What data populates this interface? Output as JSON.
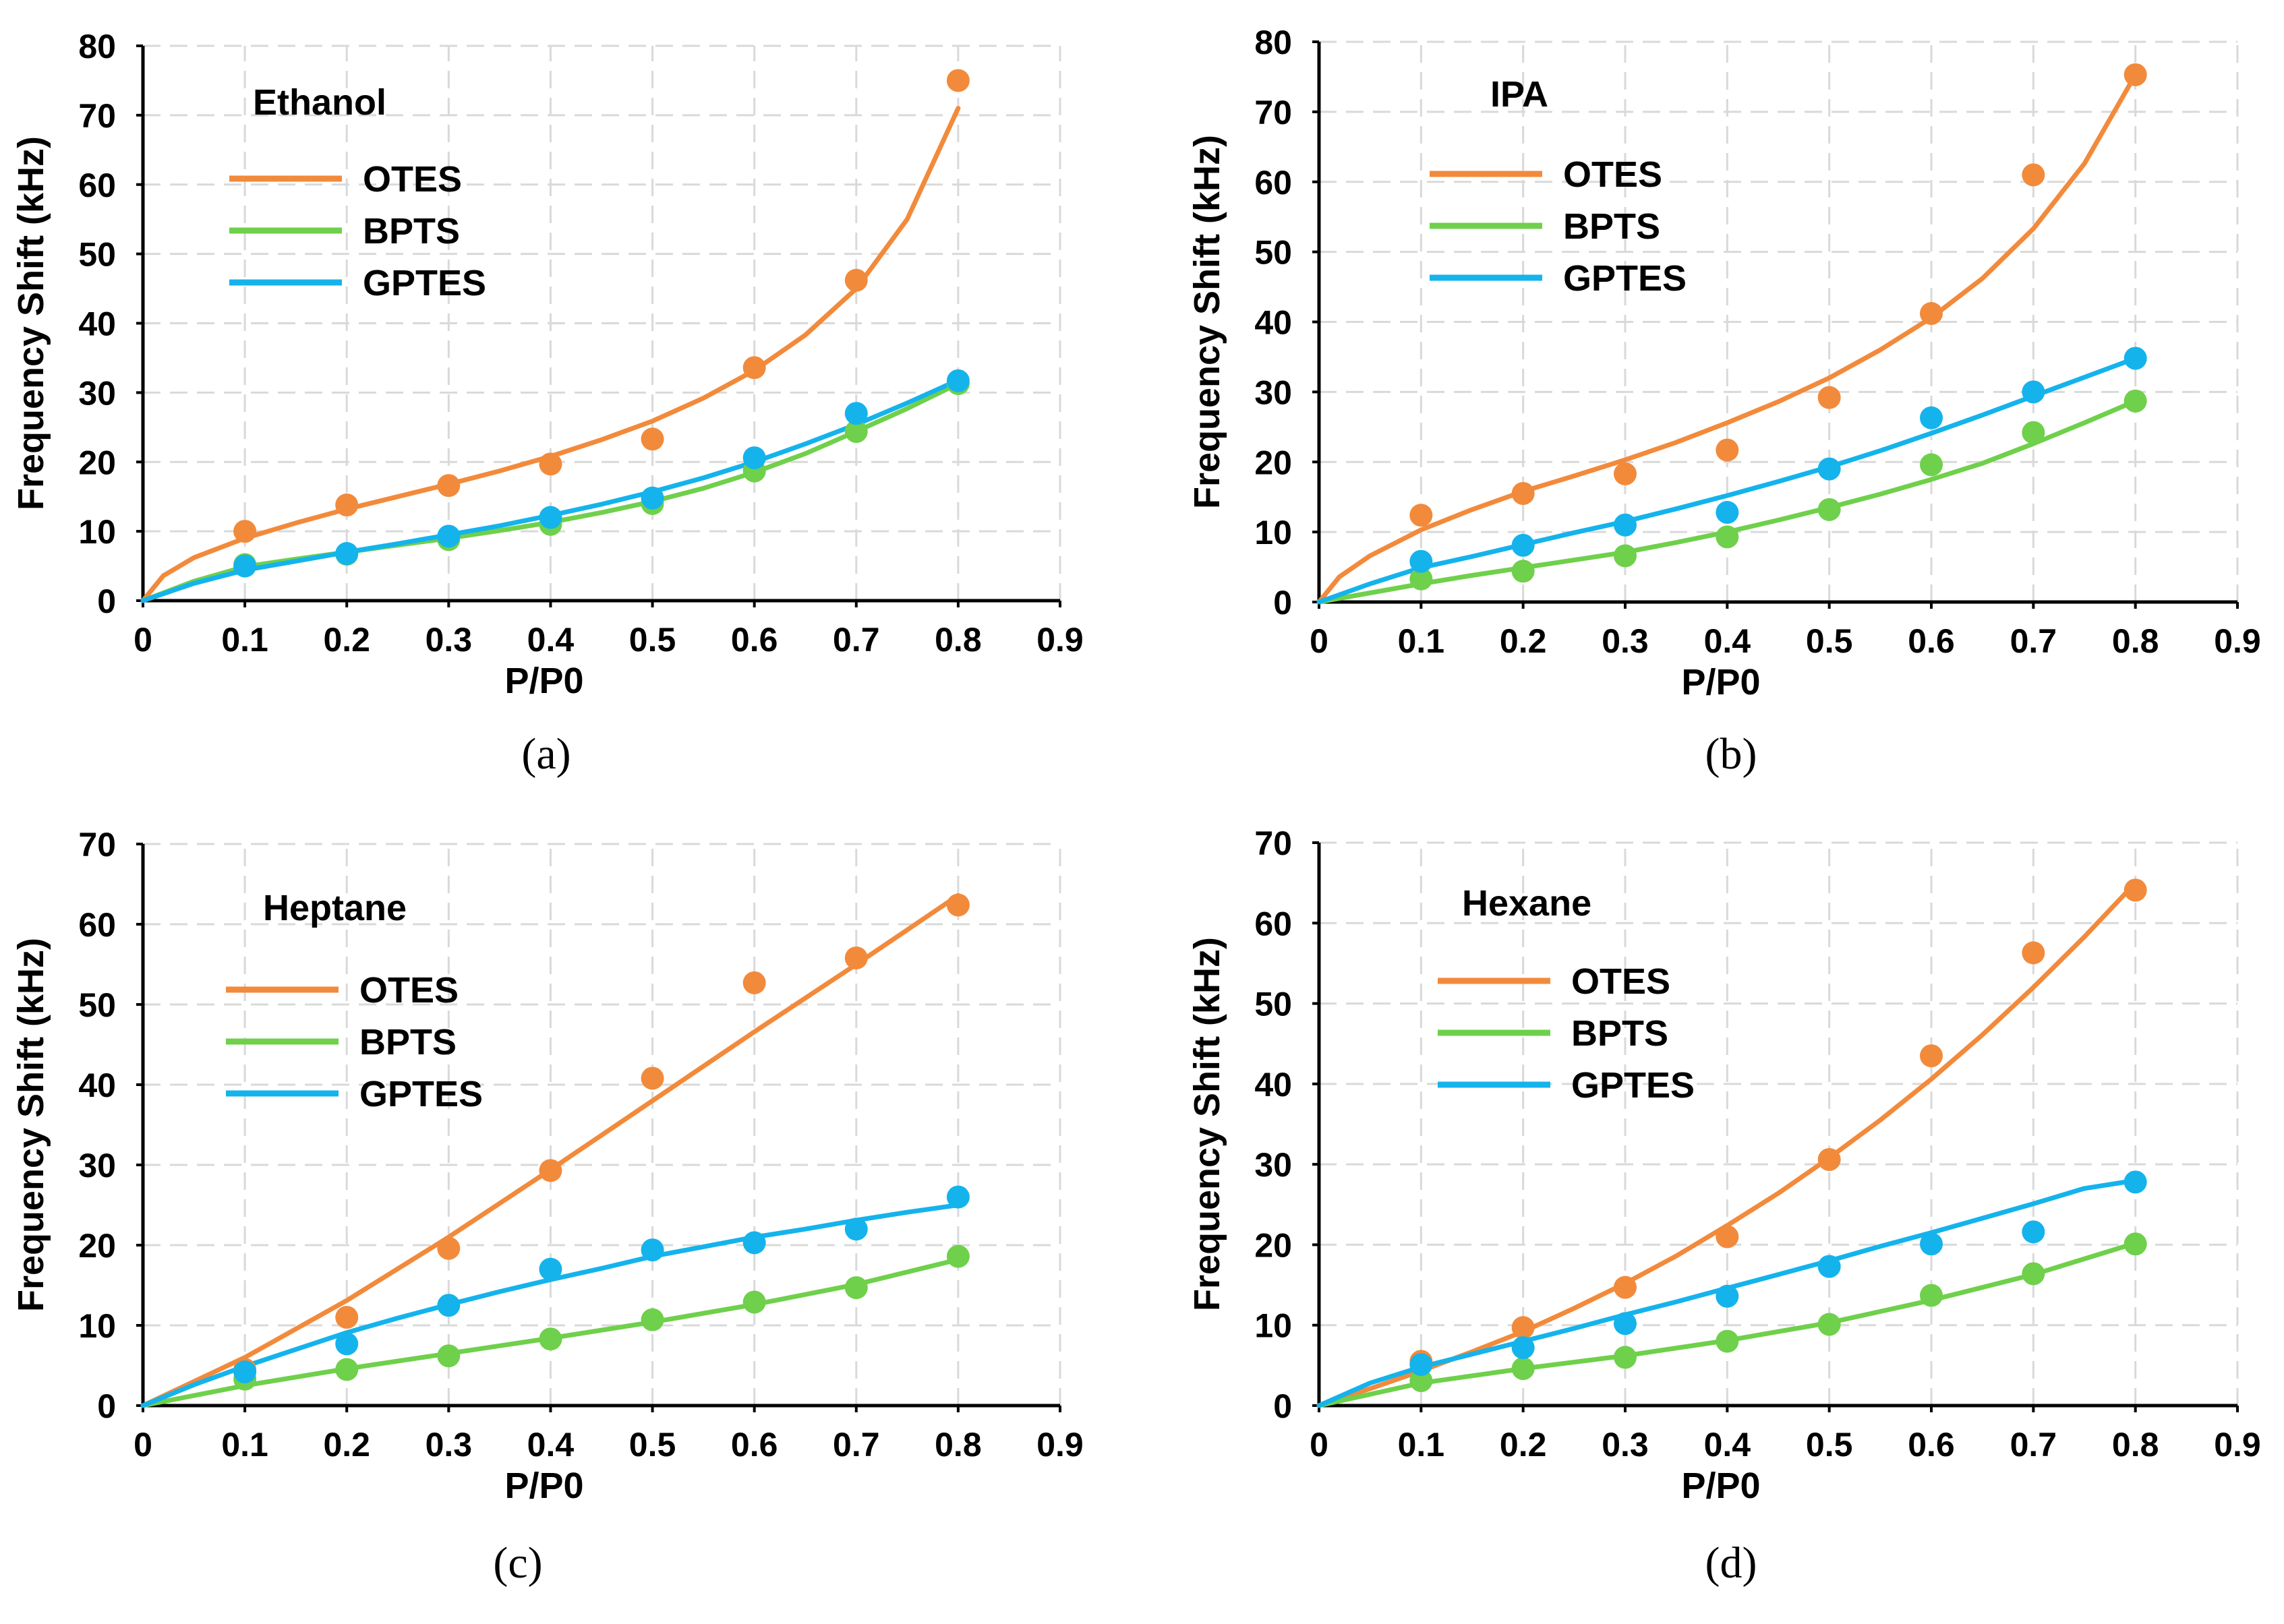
{
  "colors": {
    "OTES": "#f28a3b",
    "BPTS": "#6fd04b",
    "GPTES": "#14b3ec"
  },
  "chart_data": [
    {
      "type": "scatter",
      "panel": "a",
      "caption": "(a)",
      "title": "Ethanol",
      "xlabel": "P/P0",
      "ylabel": "Frequency Shift (kHz)",
      "xlim": [
        0,
        0.9
      ],
      "ylim": [
        0,
        80
      ],
      "xticks": [
        "0",
        "0.1",
        "0.2",
        "0.3",
        "0.4",
        "0.5",
        "0.6",
        "0.7",
        "0.8",
        "0.9"
      ],
      "yticks": [
        "0",
        "10",
        "20",
        "30",
        "40",
        "50",
        "60",
        "70",
        "80"
      ],
      "grid": true,
      "legend_position": "top-left",
      "x": [
        0.1,
        0.2,
        0.3,
        0.4,
        0.5,
        0.6,
        0.7,
        0.8
      ],
      "series": [
        {
          "name": "OTES",
          "values": [
            10,
            13.8,
            16.6,
            19.7,
            23.3,
            33.6,
            46.2,
            75
          ],
          "fit": [
            [
              0,
              0
            ],
            [
              0.02,
              3.6
            ],
            [
              0.05,
              6.2
            ],
            [
              0.1,
              9
            ],
            [
              0.15,
              11.2
            ],
            [
              0.2,
              13.2
            ],
            [
              0.25,
              15
            ],
            [
              0.3,
              16.8
            ],
            [
              0.35,
              18.7
            ],
            [
              0.4,
              20.8
            ],
            [
              0.45,
              23.2
            ],
            [
              0.5,
              25.9
            ],
            [
              0.55,
              29.2
            ],
            [
              0.6,
              33.2
            ],
            [
              0.65,
              38.3
            ],
            [
              0.7,
              45
            ],
            [
              0.75,
              55
            ],
            [
              0.8,
              71
            ]
          ]
        },
        {
          "name": "BPTS",
          "values": [
            5.2,
            6.7,
            8.8,
            11,
            14,
            18.7,
            24.4,
            31.3
          ],
          "fit": [
            [
              0,
              0
            ],
            [
              0.05,
              2.8
            ],
            [
              0.1,
              4.9
            ],
            [
              0.15,
              6
            ],
            [
              0.2,
              7
            ],
            [
              0.25,
              8
            ],
            [
              0.3,
              9
            ],
            [
              0.35,
              10.1
            ],
            [
              0.4,
              11.3
            ],
            [
              0.45,
              12.7
            ],
            [
              0.5,
              14.3
            ],
            [
              0.55,
              16.2
            ],
            [
              0.6,
              18.5
            ],
            [
              0.65,
              21.2
            ],
            [
              0.7,
              24.4
            ],
            [
              0.75,
              27.7
            ],
            [
              0.8,
              31.3
            ]
          ]
        },
        {
          "name": "GPTES",
          "values": [
            5,
            6.8,
            9.3,
            12,
            14.8,
            20.6,
            27,
            31.7
          ],
          "fit": [
            [
              0,
              0
            ],
            [
              0.05,
              2.5
            ],
            [
              0.1,
              4.4
            ],
            [
              0.15,
              5.7
            ],
            [
              0.2,
              7
            ],
            [
              0.25,
              8.2
            ],
            [
              0.3,
              9.5
            ],
            [
              0.35,
              10.8
            ],
            [
              0.4,
              12.3
            ],
            [
              0.45,
              13.9
            ],
            [
              0.5,
              15.7
            ],
            [
              0.55,
              17.7
            ],
            [
              0.6,
              20
            ],
            [
              0.65,
              22.6
            ],
            [
              0.7,
              25.4
            ],
            [
              0.75,
              28.5
            ],
            [
              0.8,
              31.8
            ]
          ]
        }
      ]
    },
    {
      "type": "scatter",
      "panel": "b",
      "caption": "(b)",
      "title": "IPA",
      "xlabel": "P/P0",
      "ylabel": "Frequency Shift (kHz)",
      "xlim": [
        0,
        0.9
      ],
      "ylim": [
        0,
        80
      ],
      "xticks": [
        "0",
        "0.1",
        "0.2",
        "0.3",
        "0.4",
        "0.5",
        "0.6",
        "0.7",
        "0.8",
        "0.9"
      ],
      "yticks": [
        "0",
        "10",
        "20",
        "30",
        "40",
        "50",
        "60",
        "70",
        "80"
      ],
      "grid": true,
      "legend_position": "top-left",
      "x": [
        0.1,
        0.2,
        0.3,
        0.4,
        0.5,
        0.6,
        0.7,
        0.8
      ],
      "series": [
        {
          "name": "OTES",
          "values": [
            12.4,
            15.5,
            18.3,
            21.7,
            29.2,
            41.2,
            61,
            75.3
          ],
          "fit": [
            [
              0,
              0
            ],
            [
              0.02,
              3.6
            ],
            [
              0.05,
              6.6
            ],
            [
              0.1,
              10.3
            ],
            [
              0.15,
              13.2
            ],
            [
              0.2,
              15.8
            ],
            [
              0.25,
              18
            ],
            [
              0.3,
              20.3
            ],
            [
              0.35,
              22.8
            ],
            [
              0.4,
              25.6
            ],
            [
              0.45,
              28.6
            ],
            [
              0.5,
              32
            ],
            [
              0.55,
              36
            ],
            [
              0.6,
              40.6
            ],
            [
              0.65,
              46.2
            ],
            [
              0.7,
              53.3
            ],
            [
              0.75,
              62.6
            ],
            [
              0.8,
              75.3
            ]
          ]
        },
        {
          "name": "BPTS",
          "values": [
            3.3,
            4.4,
            6.6,
            9.3,
            13.2,
            19.6,
            24.2,
            28.7
          ],
          "fit": [
            [
              0,
              0
            ],
            [
              0.05,
              1.3
            ],
            [
              0.1,
              2.6
            ],
            [
              0.15,
              3.8
            ],
            [
              0.2,
              4.9
            ],
            [
              0.25,
              6
            ],
            [
              0.3,
              7.1
            ],
            [
              0.35,
              8.5
            ],
            [
              0.4,
              10
            ],
            [
              0.45,
              11.7
            ],
            [
              0.5,
              13.5
            ],
            [
              0.55,
              15.4
            ],
            [
              0.6,
              17.5
            ],
            [
              0.65,
              19.8
            ],
            [
              0.7,
              22.6
            ],
            [
              0.75,
              25.6
            ],
            [
              0.8,
              28.7
            ]
          ]
        },
        {
          "name": "GPTES",
          "values": [
            5.8,
            8.1,
            11,
            12.8,
            19,
            26.3,
            30,
            34.8
          ],
          "fit": [
            [
              0,
              0
            ],
            [
              0.05,
              2.6
            ],
            [
              0.1,
              4.9
            ],
            [
              0.15,
              6.5
            ],
            [
              0.2,
              8.2
            ],
            [
              0.25,
              9.9
            ],
            [
              0.3,
              11.5
            ],
            [
              0.35,
              13.3
            ],
            [
              0.4,
              15.2
            ],
            [
              0.45,
              17.2
            ],
            [
              0.5,
              19.3
            ],
            [
              0.55,
              21.6
            ],
            [
              0.6,
              24.1
            ],
            [
              0.65,
              26.7
            ],
            [
              0.7,
              29.4
            ],
            [
              0.75,
              32.1
            ],
            [
              0.8,
              34.8
            ]
          ]
        }
      ]
    },
    {
      "type": "scatter",
      "panel": "c",
      "caption": "(c)",
      "title": "Heptane",
      "xlabel": "P/P0",
      "ylabel": "Frequency Shift (kHz)",
      "xlim": [
        0,
        0.9
      ],
      "ylim": [
        0,
        70
      ],
      "xticks": [
        "0",
        "0.1",
        "0.2",
        "0.3",
        "0.4",
        "0.5",
        "0.6",
        "0.7",
        "0.8",
        "0.9"
      ],
      "yticks": [
        "0",
        "10",
        "20",
        "30",
        "40",
        "50",
        "60",
        "70"
      ],
      "grid": true,
      "legend_position": "top-left",
      "x": [
        0.1,
        0.2,
        0.3,
        0.4,
        0.5,
        0.6,
        0.7,
        0.8
      ],
      "series": [
        {
          "name": "OTES",
          "values": [
            4.5,
            11,
            19.6,
            29.3,
            40.8,
            52.7,
            55.8,
            62.4
          ],
          "fit": [
            [
              0,
              0
            ],
            [
              0.1,
              6
            ],
            [
              0.2,
              13.1
            ],
            [
              0.3,
              21
            ],
            [
              0.4,
              29.4
            ],
            [
              0.5,
              38
            ],
            [
              0.6,
              46.6
            ],
            [
              0.7,
              55
            ],
            [
              0.8,
              63.6
            ]
          ]
        },
        {
          "name": "BPTS",
          "values": [
            3.3,
            4.5,
            6.2,
            8.3,
            10.7,
            12.9,
            14.7,
            18.6
          ],
          "fit": [
            [
              0,
              0
            ],
            [
              0.1,
              2.5
            ],
            [
              0.2,
              4.6
            ],
            [
              0.3,
              6.5
            ],
            [
              0.4,
              8.4
            ],
            [
              0.5,
              10.4
            ],
            [
              0.6,
              12.6
            ],
            [
              0.7,
              15.1
            ],
            [
              0.8,
              18.2
            ]
          ]
        },
        {
          "name": "GPTES",
          "values": [
            4.2,
            7.7,
            12.5,
            17,
            19.4,
            20.3,
            22,
            26
          ],
          "fit": [
            [
              0,
              0
            ],
            [
              0.05,
              2.6
            ],
            [
              0.1,
              4.9
            ],
            [
              0.15,
              7
            ],
            [
              0.2,
              9.1
            ],
            [
              0.25,
              10.9
            ],
            [
              0.3,
              12.6
            ],
            [
              0.35,
              14.2
            ],
            [
              0.4,
              15.7
            ],
            [
              0.45,
              17.1
            ],
            [
              0.5,
              18.6
            ],
            [
              0.55,
              19.8
            ],
            [
              0.6,
              21
            ],
            [
              0.65,
              22
            ],
            [
              0.7,
              23.1
            ],
            [
              0.75,
              24.1
            ],
            [
              0.8,
              25
            ]
          ]
        }
      ]
    },
    {
      "type": "scatter",
      "panel": "d",
      "caption": "(d)",
      "title": "Hexane",
      "xlabel": "P/P0",
      "ylabel": "Frequency Shift (kHz)",
      "xlim": [
        0,
        0.9
      ],
      "ylim": [
        0,
        70
      ],
      "xticks": [
        "0",
        "0.1",
        "0.2",
        "0.3",
        "0.4",
        "0.5",
        "0.6",
        "0.7",
        "0.8",
        "0.9"
      ],
      "yticks": [
        "0",
        "10",
        "20",
        "30",
        "40",
        "50",
        "60",
        "70"
      ],
      "grid": true,
      "legend_position": "top-left",
      "x": [
        0.1,
        0.2,
        0.3,
        0.4,
        0.5,
        0.6,
        0.7,
        0.8
      ],
      "series": [
        {
          "name": "OTES",
          "values": [
            5.5,
            9.7,
            14.7,
            21,
            30.6,
            43.5,
            56.3,
            64.1
          ],
          "fit": [
            [
              0,
              0
            ],
            [
              0.05,
              2.1
            ],
            [
              0.1,
              4.3
            ],
            [
              0.15,
              6.7
            ],
            [
              0.2,
              9.2
            ],
            [
              0.25,
              12.1
            ],
            [
              0.3,
              15.2
            ],
            [
              0.35,
              18.6
            ],
            [
              0.4,
              22.4
            ],
            [
              0.45,
              26.4
            ],
            [
              0.5,
              30.8
            ],
            [
              0.55,
              35.5
            ],
            [
              0.6,
              40.6
            ],
            [
              0.65,
              46.1
            ],
            [
              0.7,
              52
            ],
            [
              0.75,
              58.3
            ],
            [
              0.8,
              65
            ]
          ]
        },
        {
          "name": "BPTS",
          "values": [
            3.1,
            4.6,
            6,
            8,
            10.1,
            13.7,
            16.4,
            20.1
          ],
          "fit": [
            [
              0,
              0
            ],
            [
              0.1,
              2.8
            ],
            [
              0.2,
              4.6
            ],
            [
              0.3,
              6.2
            ],
            [
              0.4,
              8.1
            ],
            [
              0.5,
              10.3
            ],
            [
              0.6,
              13.1
            ],
            [
              0.7,
              16.3
            ],
            [
              0.8,
              20.2
            ]
          ]
        },
        {
          "name": "GPTES",
          "values": [
            5.1,
            7.2,
            10.2,
            13.6,
            17.3,
            20.1,
            21.6,
            27.8
          ],
          "fit": [
            [
              0,
              0
            ],
            [
              0.05,
              2.8
            ],
            [
              0.1,
              4.8
            ],
            [
              0.15,
              6.4
            ],
            [
              0.2,
              8
            ],
            [
              0.25,
              9.6
            ],
            [
              0.3,
              11.3
            ],
            [
              0.35,
              12.9
            ],
            [
              0.4,
              14.6
            ],
            [
              0.45,
              16.3
            ],
            [
              0.5,
              18
            ],
            [
              0.55,
              19.8
            ],
            [
              0.6,
              21.5
            ],
            [
              0.65,
              23.3
            ],
            [
              0.7,
              25.1
            ],
            [
              0.75,
              27
            ],
            [
              0.8,
              28
            ]
          ]
        }
      ]
    }
  ]
}
